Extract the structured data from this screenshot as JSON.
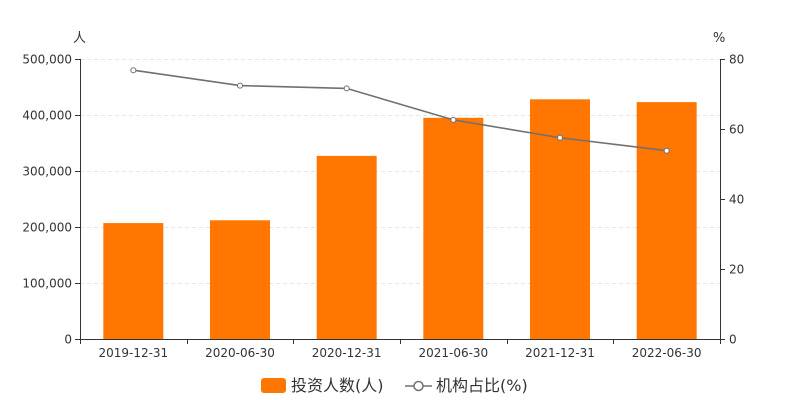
{
  "chart_data": {
    "type": "bar",
    "categories": [
      "2019-12-31",
      "2020-06-30",
      "2020-12-31",
      "2021-06-30",
      "2021-12-31",
      "2022-06-30"
    ],
    "series": [
      {
        "name": "投资人数(人)",
        "type": "bar",
        "axis": "left",
        "color": "#ff7600",
        "values": [
          207000,
          212000,
          327000,
          395000,
          428000,
          423000
        ]
      },
      {
        "name": "机构占比(%)",
        "type": "line",
        "axis": "right",
        "color": "#707070",
        "values": [
          76.8,
          72.4,
          71.6,
          62.6,
          57.5,
          53.8
        ]
      }
    ],
    "y_left": {
      "unit": "人",
      "range": [
        0,
        500000
      ],
      "ticks": [
        0,
        100000,
        200000,
        300000,
        400000,
        500000
      ],
      "tick_labels": [
        "0",
        "100,000",
        "200,000",
        "300,000",
        "400,000",
        "500,000"
      ]
    },
    "y_right": {
      "unit": "%",
      "range": [
        0,
        80
      ],
      "ticks": [
        0,
        20,
        40,
        60,
        80
      ],
      "tick_labels": [
        "0",
        "20",
        "40",
        "60",
        "80"
      ]
    },
    "grid": true,
    "legend_position": "bottom-center"
  }
}
